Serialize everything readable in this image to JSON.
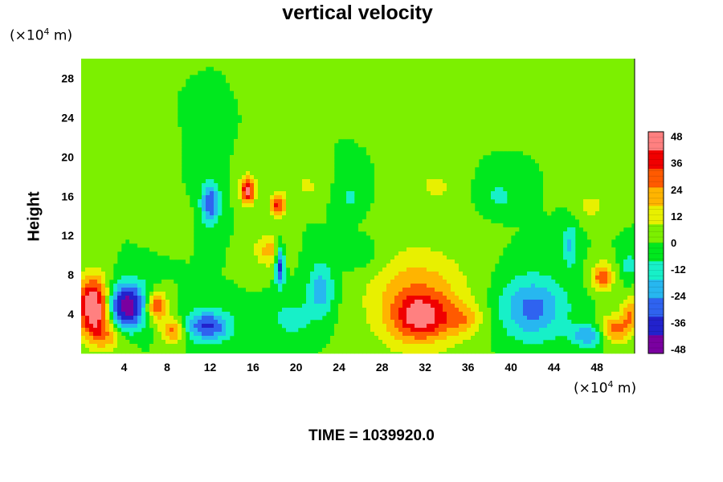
{
  "chart_data": {
    "type": "heatmap",
    "title": "vertical velocity",
    "xlabel": "",
    "ylabel": "Height",
    "x_unit": {
      "prefix": "(×10",
      "exp": "4",
      "suffix": " m)"
    },
    "y_unit": {
      "prefix": "(×10",
      "exp": "4",
      "suffix": " m)"
    },
    "xlim": [
      0,
      51.5
    ],
    "ylim": [
      0,
      30
    ],
    "x_ticks": [
      4,
      8,
      12,
      16,
      20,
      24,
      28,
      32,
      36,
      40,
      44,
      48
    ],
    "y_ticks": [
      4,
      8,
      12,
      16,
      20,
      24,
      28
    ],
    "colorbar": {
      "min": -50,
      "max": 50,
      "ticks": [
        48,
        36,
        24,
        12,
        0,
        -12,
        -24,
        -36,
        -48
      ],
      "colors": [
        "#7a00a0",
        "#2222cc",
        "#2f63f0",
        "#27b7f0",
        "#17f0c8",
        "#00e81e",
        "#7cf000",
        "#e8f000",
        "#ffb400",
        "#ff5a00",
        "#f00000",
        "#ff8080"
      ]
    },
    "features": [
      {
        "x": 1.2,
        "y": 5.0,
        "value": 55,
        "sx": 1.1,
        "sy": 2.0
      },
      {
        "x": 2.6,
        "y": 2.2,
        "value": 30,
        "sx": 1.4,
        "sy": 1.3
      },
      {
        "x": 4.2,
        "y": 5.0,
        "value": -48,
        "sx": 1.4,
        "sy": 1.6
      },
      {
        "x": 3.6,
        "y": 2.8,
        "value": -20,
        "sx": 1.2,
        "sy": 1.2
      },
      {
        "x": 7.0,
        "y": 4.8,
        "value": 38,
        "sx": 0.7,
        "sy": 1.0
      },
      {
        "x": 8.5,
        "y": 2.3,
        "value": 28,
        "sx": 0.8,
        "sy": 0.9
      },
      {
        "x": 11.8,
        "y": 2.8,
        "value": -35,
        "sx": 1.5,
        "sy": 1.1
      },
      {
        "x": 12.0,
        "y": 15.3,
        "value": -32,
        "sx": 0.6,
        "sy": 1.6
      },
      {
        "x": 15.5,
        "y": 16.6,
        "value": 45,
        "sx": 0.5,
        "sy": 1.0
      },
      {
        "x": 18.3,
        "y": 15.1,
        "value": 36,
        "sx": 0.5,
        "sy": 0.9
      },
      {
        "x": 17.5,
        "y": 10.5,
        "value": 20,
        "sx": 1.0,
        "sy": 1.2
      },
      {
        "x": 18.5,
        "y": 9.0,
        "value": -40,
        "sx": 0.3,
        "sy": 1.5
      },
      {
        "x": 22.3,
        "y": 6.4,
        "value": -22,
        "sx": 0.9,
        "sy": 2.0
      },
      {
        "x": 19.6,
        "y": 3.5,
        "value": -14,
        "sx": 1.2,
        "sy": 1.3
      },
      {
        "x": 31.3,
        "y": 5.3,
        "value": 26,
        "sx": 3.3,
        "sy": 3.6
      },
      {
        "x": 31.6,
        "y": 3.7,
        "value": 28,
        "sx": 1.6,
        "sy": 1.5
      },
      {
        "x": 35.5,
        "y": 3.5,
        "value": 16,
        "sx": 1.3,
        "sy": 1.2
      },
      {
        "x": 42.0,
        "y": 4.6,
        "value": -28,
        "sx": 2.2,
        "sy": 2.3
      },
      {
        "x": 45.5,
        "y": 11.0,
        "value": -18,
        "sx": 0.5,
        "sy": 1.6
      },
      {
        "x": 47.2,
        "y": 1.8,
        "value": -24,
        "sx": 1.1,
        "sy": 0.8
      },
      {
        "x": 48.5,
        "y": 7.8,
        "value": 32,
        "sx": 0.7,
        "sy": 1.0
      },
      {
        "x": 49.6,
        "y": 2.4,
        "value": 28,
        "sx": 1.0,
        "sy": 1.0
      },
      {
        "x": 51.2,
        "y": 4.0,
        "value": 24,
        "sx": 0.7,
        "sy": 1.2
      },
      {
        "x": 51.0,
        "y": 9.0,
        "value": -12,
        "sx": 0.6,
        "sy": 1.0
      },
      {
        "x": 21.0,
        "y": 17.0,
        "value": 10,
        "sx": 1.0,
        "sy": 1.0
      },
      {
        "x": 25.0,
        "y": 16.0,
        "value": -10,
        "sx": 0.8,
        "sy": 1.2
      },
      {
        "x": 33.0,
        "y": 17.0,
        "value": 12,
        "sx": 1.0,
        "sy": 1.0
      },
      {
        "x": 39.0,
        "y": 16.0,
        "value": -12,
        "sx": 0.9,
        "sy": 1.0
      },
      {
        "x": 47.5,
        "y": 15.0,
        "value": 12,
        "sx": 1.0,
        "sy": 1.0
      },
      {
        "x": 8.0,
        "y": 13.5,
        "value": 8,
        "sx": 1.2,
        "sy": 1.0
      },
      {
        "x": 26.0,
        "y": 10.0,
        "value": -8,
        "sx": 1.5,
        "sy": 1.2
      },
      {
        "x": 5.0,
        "y": 17.0,
        "value": 8,
        "sx": 1.0,
        "sy": 1.2
      }
    ]
  },
  "time_label": "TIME = 1039920.0"
}
